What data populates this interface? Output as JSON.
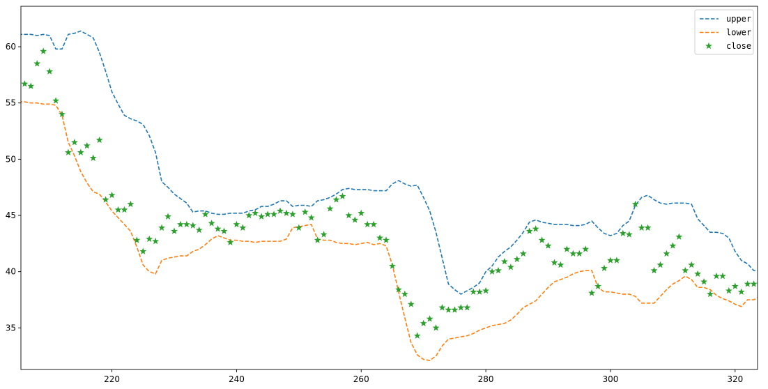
{
  "chart_data": {
    "type": "line",
    "title": "",
    "xlabel": "",
    "ylabel": "",
    "xlim": [
      205.4,
      323.6
    ],
    "ylim": [
      31.3,
      63.6
    ],
    "xticks": [
      220,
      240,
      260,
      280,
      300,
      320
    ],
    "yticks": [
      35,
      40,
      45,
      50,
      55,
      60
    ],
    "grid": false,
    "legend_position": "top-right",
    "x": [
      205,
      206,
      207,
      208,
      209,
      210,
      211,
      212,
      213,
      214,
      215,
      216,
      217,
      218,
      219,
      220,
      221,
      222,
      223,
      224,
      225,
      226,
      227,
      228,
      229,
      230,
      231,
      232,
      233,
      234,
      235,
      236,
      237,
      238,
      239,
      240,
      241,
      242,
      243,
      244,
      245,
      246,
      247,
      248,
      249,
      250,
      251,
      252,
      253,
      254,
      255,
      256,
      257,
      258,
      259,
      260,
      261,
      262,
      263,
      264,
      265,
      266,
      267,
      268,
      269,
      270,
      271,
      272,
      273,
      274,
      275,
      276,
      277,
      278,
      279,
      280,
      281,
      282,
      283,
      284,
      285,
      286,
      287,
      288,
      289,
      290,
      291,
      292,
      293,
      294,
      295,
      296,
      297,
      298,
      299,
      300,
      301,
      302,
      303,
      304,
      305,
      306,
      307,
      308,
      309,
      310,
      311,
      312,
      313,
      314,
      315,
      316,
      317,
      318,
      319,
      320,
      321,
      322,
      323,
      324
    ],
    "series": [
      {
        "name": "upper",
        "style": "dashed-line",
        "color": "#1f77b4",
        "values": [
          61.1,
          61.1,
          61.1,
          61.0,
          61.1,
          61.0,
          59.8,
          59.8,
          61.1,
          61.2,
          61.4,
          61.1,
          60.8,
          59.5,
          57.8,
          56.0,
          54.9,
          53.9,
          53.6,
          53.4,
          53.1,
          52.1,
          50.6,
          48.0,
          47.5,
          46.9,
          46.5,
          46.1,
          45.3,
          45.4,
          45.4,
          45.2,
          45.1,
          45.1,
          45.2,
          45.2,
          45.2,
          45.4,
          45.5,
          45.8,
          45.8,
          46.0,
          46.3,
          46.3,
          45.8,
          45.9,
          45.9,
          45.8,
          46.3,
          46.4,
          46.6,
          46.9,
          47.3,
          47.4,
          47.3,
          47.3,
          47.3,
          47.2,
          47.2,
          47.2,
          47.8,
          48.1,
          47.8,
          47.6,
          47.7,
          46.6,
          45.4,
          43.5,
          41.2,
          38.9,
          38.4,
          38.0,
          38.3,
          38.6,
          39.0,
          40.0,
          40.5,
          41.3,
          41.8,
          42.2,
          42.8,
          43.5,
          44.4,
          44.6,
          44.4,
          44.3,
          44.2,
          44.2,
          44.2,
          44.1,
          44.1,
          44.2,
          44.5,
          43.9,
          43.4,
          43.2,
          43.4,
          44.1,
          44.5,
          45.9,
          46.6,
          46.8,
          46.4,
          46.1,
          46.0,
          46.1,
          46.1,
          46.1,
          46.0,
          44.7,
          44.1,
          43.5,
          43.5,
          43.4,
          43.0,
          41.8,
          41.0,
          40.7,
          40.1,
          40.1
        ]
      },
      {
        "name": "lower",
        "style": "dashed-line",
        "color": "#ff7f0e",
        "values": [
          55.1,
          55.1,
          55.0,
          55.0,
          54.9,
          54.9,
          54.8,
          53.9,
          51.5,
          50.3,
          48.9,
          47.9,
          47.1,
          46.9,
          46.2,
          45.4,
          44.8,
          44.2,
          43.6,
          42.2,
          40.6,
          40.0,
          39.8,
          41.0,
          41.2,
          41.3,
          41.4,
          41.4,
          41.8,
          42.0,
          42.4,
          42.9,
          43.2,
          43.0,
          42.8,
          42.8,
          42.7,
          42.7,
          42.6,
          42.7,
          42.7,
          42.7,
          42.7,
          42.9,
          43.9,
          44.0,
          44.1,
          44.2,
          42.9,
          42.8,
          42.8,
          42.6,
          42.5,
          42.5,
          42.4,
          42.5,
          42.6,
          42.4,
          42.5,
          42.3,
          40.6,
          38.2,
          35.9,
          33.7,
          32.6,
          32.2,
          32.1,
          32.5,
          33.4,
          34.0,
          34.1,
          34.2,
          34.3,
          34.5,
          34.8,
          35.0,
          35.2,
          35.3,
          35.4,
          35.7,
          36.2,
          36.8,
          37.1,
          37.4,
          38.0,
          38.6,
          39.1,
          39.3,
          39.5,
          39.8,
          40.0,
          40.1,
          40.1,
          38.6,
          38.2,
          38.2,
          38.1,
          38.0,
          38.0,
          37.8,
          37.2,
          37.2,
          37.2,
          37.8,
          38.4,
          38.9,
          39.2,
          39.6,
          39.3,
          38.6,
          38.6,
          38.4,
          37.9,
          37.6,
          37.4,
          37.1,
          36.9,
          37.5,
          37.5,
          37.8
        ]
      },
      {
        "name": "close",
        "style": "star-markers",
        "color": "#2ca02c",
        "values": [
          56.7,
          56.7,
          56.5,
          58.5,
          59.6,
          57.8,
          55.2,
          54.0,
          50.6,
          51.5,
          50.6,
          51.2,
          50.1,
          51.7,
          46.4,
          46.8,
          45.5,
          45.5,
          46.0,
          42.8,
          41.8,
          42.9,
          42.7,
          43.9,
          44.9,
          43.6,
          44.2,
          44.2,
          44.1,
          43.7,
          45.1,
          44.3,
          43.8,
          43.6,
          42.6,
          44.2,
          43.9,
          45.0,
          45.2,
          44.9,
          45.1,
          45.1,
          45.4,
          45.2,
          45.1,
          43.9,
          45.3,
          44.8,
          42.8,
          43.3,
          45.6,
          46.4,
          46.7,
          45.0,
          44.6,
          45.2,
          44.2,
          44.2,
          43.0,
          42.8,
          40.5,
          38.4,
          38.0,
          37.1,
          34.3,
          35.4,
          35.8,
          35.0,
          36.8,
          36.6,
          36.6,
          36.8,
          36.8,
          38.2,
          38.2,
          38.3,
          40.0,
          40.1,
          40.9,
          40.4,
          41.1,
          41.6,
          43.6,
          43.8,
          42.8,
          42.3,
          40.8,
          40.6,
          42.0,
          41.6,
          41.6,
          42.0,
          38.1,
          38.7,
          40.3,
          41.0,
          41.0,
          43.4,
          43.3,
          46.0,
          43.9,
          43.9,
          40.1,
          40.6,
          41.6,
          42.3,
          43.1,
          40.1,
          40.6,
          39.8,
          39.1,
          38.0,
          39.6,
          39.6,
          38.3,
          38.7,
          38.2,
          38.9,
          38.9,
          38.9
        ]
      }
    ]
  }
}
